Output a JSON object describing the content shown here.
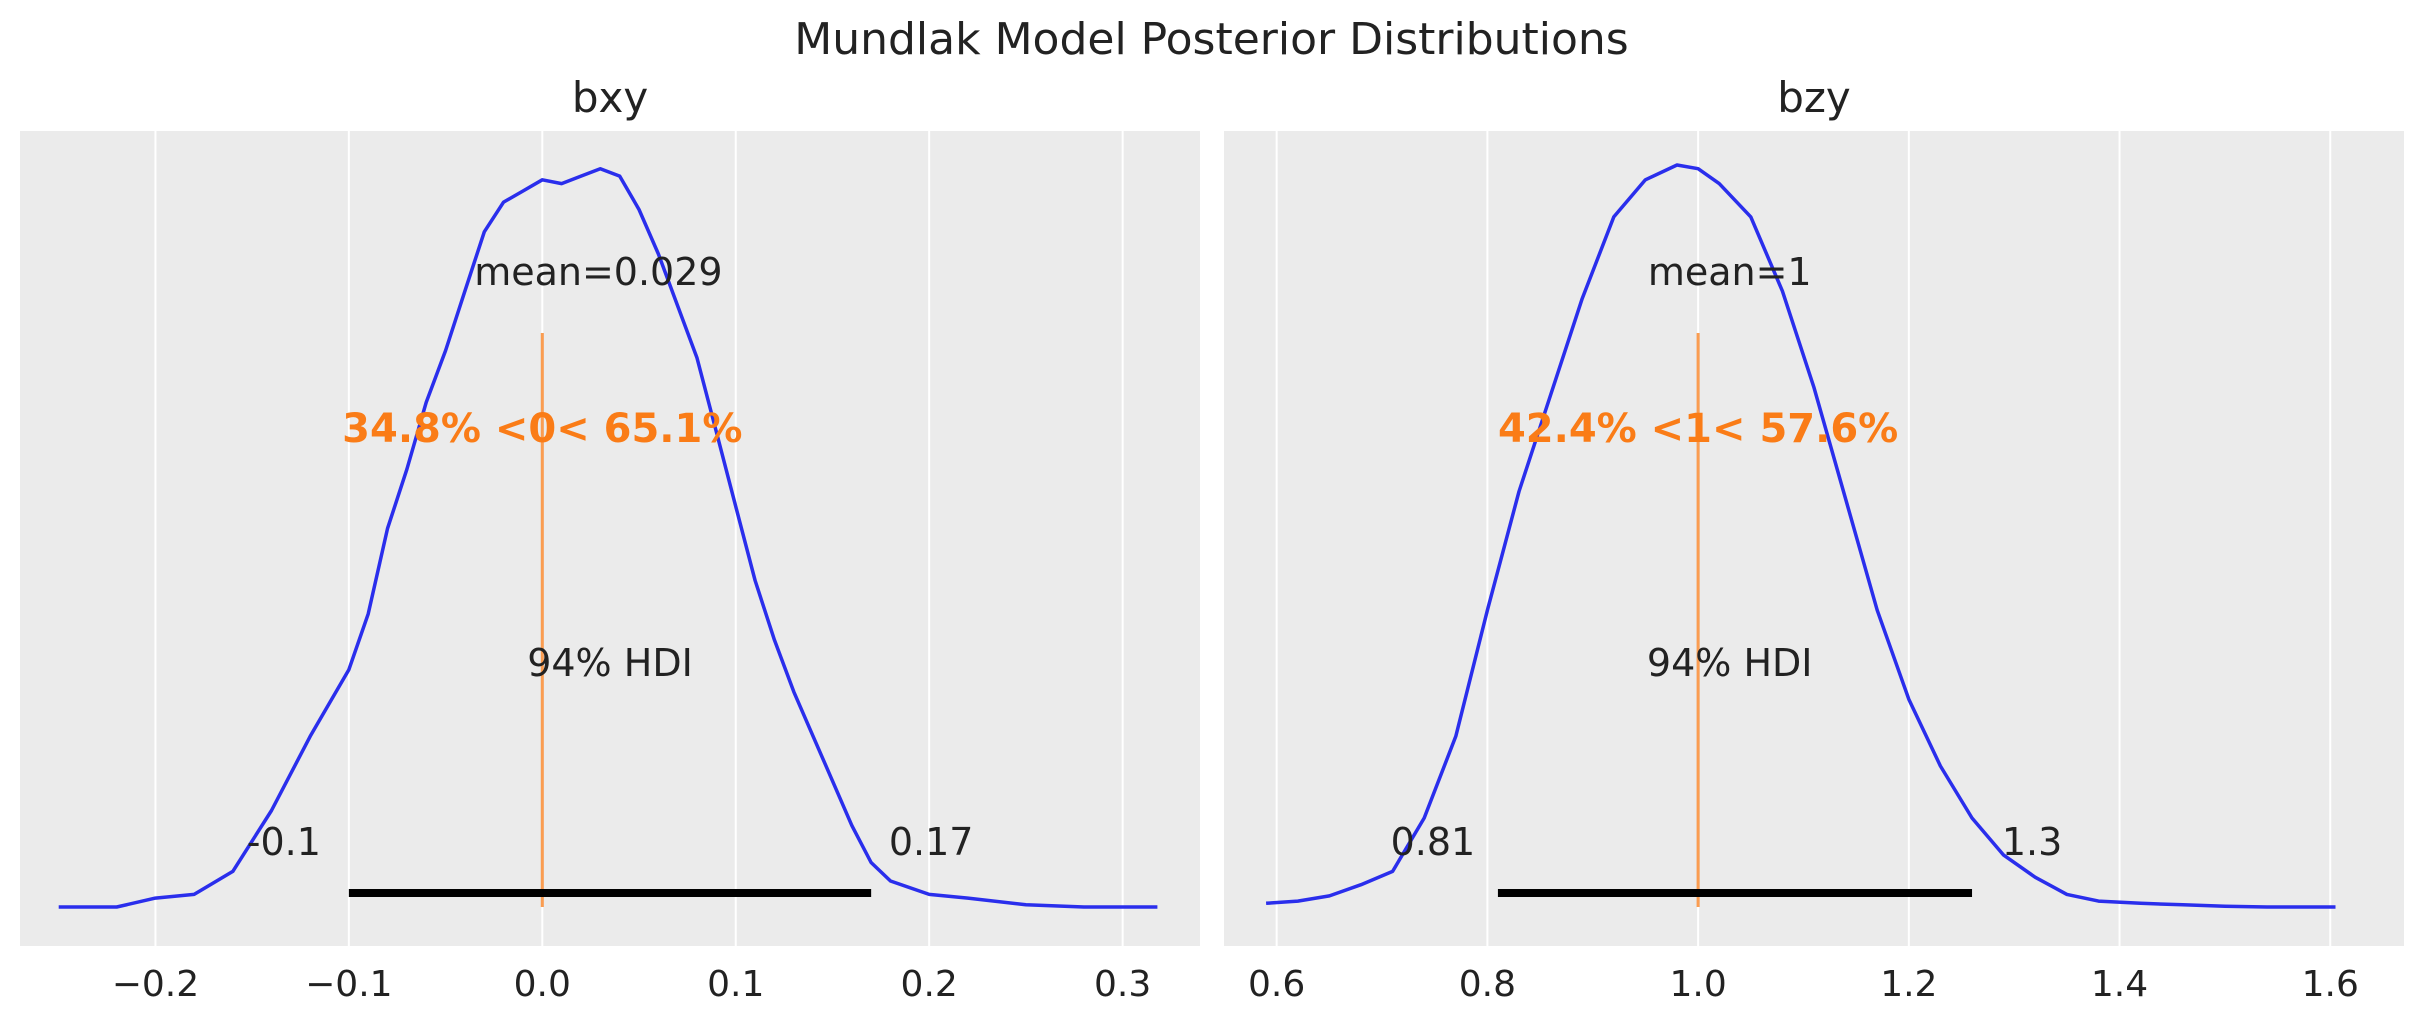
{
  "figure": {
    "title": "Mundlak Model Posterior Distributions"
  },
  "colors": {
    "background": "#ebebeb",
    "grid": "#ffffff",
    "density": "#2a2eec",
    "reference": "#fa7c17",
    "hdi": "#000000",
    "text": "#222222"
  },
  "chart_data": [
    {
      "type": "line",
      "title": "bxy",
      "xlabel": "",
      "ylabel": "",
      "xlim": [
        -0.27,
        0.34
      ],
      "xticks": [
        -0.2,
        -0.1,
        0.0,
        0.1,
        0.2,
        0.3
      ],
      "xtick_labels": [
        "−0.2",
        "−0.1",
        "0.0",
        "0.1",
        "0.2",
        "0.3"
      ],
      "grid": true,
      "density": {
        "x": [
          -0.25,
          -0.22,
          -0.2,
          -0.18,
          -0.16,
          -0.14,
          -0.12,
          -0.1,
          -0.09,
          -0.08,
          -0.07,
          -0.06,
          -0.05,
          -0.04,
          -0.03,
          -0.02,
          -0.01,
          0.0,
          0.01,
          0.02,
          0.03,
          0.04,
          0.05,
          0.06,
          0.07,
          0.08,
          0.09,
          0.1,
          0.11,
          0.12,
          0.13,
          0.14,
          0.15,
          0.16,
          0.17,
          0.18,
          0.2,
          0.22,
          0.25,
          0.28,
          0.3,
          0.318
        ],
        "y": [
          0.0,
          0.0,
          0.012,
          0.017,
          0.048,
          0.13,
          0.23,
          0.32,
          0.395,
          0.51,
          0.59,
          0.68,
          0.75,
          0.83,
          0.91,
          0.95,
          0.965,
          0.98,
          0.975,
          0.985,
          0.995,
          0.985,
          0.94,
          0.88,
          0.81,
          0.74,
          0.64,
          0.54,
          0.44,
          0.36,
          0.29,
          0.23,
          0.17,
          0.11,
          0.06,
          0.035,
          0.017,
          0.012,
          0.003,
          0.0,
          0.0,
          0.0
        ]
      },
      "mean_label": "mean=0.029",
      "reference_value": 0.0,
      "reference_label": "34.8% <0< 65.1%",
      "hdi": {
        "prob_label": "94% HDI",
        "low": -0.1,
        "high": 0.17,
        "low_label": "-0.1",
        "high_label": "0.17"
      }
    },
    {
      "type": "line",
      "title": "bzy",
      "xlabel": "",
      "ylabel": "",
      "xlim": [
        0.55,
        1.67
      ],
      "xticks": [
        0.6,
        0.8,
        1.0,
        1.2,
        1.4,
        1.6
      ],
      "xtick_labels": [
        "0.6",
        "0.8",
        "1.0",
        "1.2",
        "1.4",
        "1.6"
      ],
      "grid": true,
      "density": {
        "x": [
          0.59,
          0.62,
          0.65,
          0.68,
          0.71,
          0.74,
          0.77,
          0.8,
          0.83,
          0.86,
          0.89,
          0.92,
          0.95,
          0.98,
          1.0,
          1.02,
          1.05,
          1.08,
          1.11,
          1.14,
          1.17,
          1.2,
          1.23,
          1.26,
          1.29,
          1.32,
          1.35,
          1.38,
          1.42,
          1.46,
          1.5,
          1.54,
          1.58,
          1.605
        ],
        "y": [
          0.005,
          0.008,
          0.015,
          0.03,
          0.048,
          0.12,
          0.23,
          0.4,
          0.56,
          0.69,
          0.82,
          0.93,
          0.98,
          1.0,
          0.995,
          0.975,
          0.93,
          0.83,
          0.7,
          0.55,
          0.4,
          0.28,
          0.19,
          0.12,
          0.07,
          0.04,
          0.017,
          0.008,
          0.005,
          0.003,
          0.001,
          0.0,
          0.0,
          0.0
        ]
      },
      "mean_label": "mean=1",
      "reference_value": 1.0,
      "reference_label": "42.4% <1< 57.6%",
      "hdi": {
        "prob_label": "94% HDI",
        "low": 0.81,
        "high": 1.26,
        "low_label": "0.81",
        "high_label": "1.3"
      }
    }
  ]
}
